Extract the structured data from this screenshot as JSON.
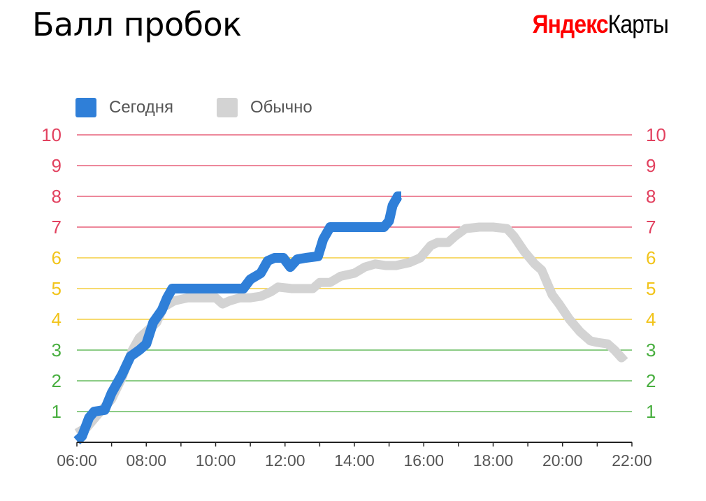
{
  "header": {
    "title": "Балл пробок",
    "brand_part1": "Яндекс",
    "brand_part2": "Карты"
  },
  "colors": {
    "today": "#2f7fd8",
    "usual": "#d3d3d3",
    "red": "#e2415f",
    "yellow": "#f2c41a",
    "green": "#47ae3e",
    "tick_text": "#555555"
  },
  "chart_data": {
    "type": "line",
    "x_unit": "hours",
    "xlim": [
      6,
      22
    ],
    "ylim": [
      0,
      10
    ],
    "x_ticks": [
      "06:00",
      "08:00",
      "10:00",
      "12:00",
      "14:00",
      "16:00",
      "18:00",
      "20:00",
      "22:00"
    ],
    "y_ticks": [
      {
        "label": "1",
        "value": 1,
        "level": "green"
      },
      {
        "label": "2",
        "value": 2,
        "level": "green"
      },
      {
        "label": "3",
        "value": 3,
        "level": "green"
      },
      {
        "label": "4",
        "value": 4,
        "level": "yellow"
      },
      {
        "label": "5",
        "value": 5,
        "level": "yellow"
      },
      {
        "label": "6",
        "value": 6,
        "level": "yellow"
      },
      {
        "label": "7",
        "value": 7,
        "level": "red"
      },
      {
        "label": "8",
        "value": 8,
        "level": "red"
      },
      {
        "label": "9",
        "value": 9,
        "level": "red"
      },
      {
        "label": "10",
        "value": 10,
        "level": "red"
      }
    ],
    "series": [
      {
        "name": "Обычно",
        "color": "#d3d3d3",
        "points": [
          [
            6,
            0.3
          ],
          [
            6.3,
            0.5
          ],
          [
            6.6,
            0.9
          ],
          [
            7,
            1.4
          ],
          [
            7.3,
            2.1
          ],
          [
            7.6,
            3.0
          ],
          [
            7.8,
            3.4
          ],
          [
            8.0,
            3.6
          ],
          [
            8.3,
            3.9
          ],
          [
            8.5,
            4.4
          ],
          [
            8.8,
            4.6
          ],
          [
            9.2,
            4.7
          ],
          [
            9.6,
            4.7
          ],
          [
            10.0,
            4.7
          ],
          [
            10.2,
            4.5
          ],
          [
            10.4,
            4.6
          ],
          [
            10.7,
            4.7
          ],
          [
            11.0,
            4.7
          ],
          [
            11.3,
            4.75
          ],
          [
            11.6,
            4.9
          ],
          [
            11.8,
            5.05
          ],
          [
            12.2,
            5.0
          ],
          [
            12.5,
            5.0
          ],
          [
            12.8,
            5.0
          ],
          [
            13.0,
            5.2
          ],
          [
            13.3,
            5.2
          ],
          [
            13.6,
            5.4
          ],
          [
            14.0,
            5.5
          ],
          [
            14.3,
            5.7
          ],
          [
            14.6,
            5.8
          ],
          [
            14.9,
            5.75
          ],
          [
            15.2,
            5.75
          ],
          [
            15.6,
            5.85
          ],
          [
            15.9,
            6.0
          ],
          [
            16.2,
            6.4
          ],
          [
            16.4,
            6.5
          ],
          [
            16.7,
            6.5
          ],
          [
            16.9,
            6.7
          ],
          [
            17.2,
            6.95
          ],
          [
            17.6,
            7.0
          ],
          [
            18.0,
            7.0
          ],
          [
            18.4,
            6.95
          ],
          [
            18.6,
            6.7
          ],
          [
            18.9,
            6.2
          ],
          [
            19.2,
            5.8
          ],
          [
            19.4,
            5.6
          ],
          [
            19.7,
            4.8
          ],
          [
            19.9,
            4.5
          ],
          [
            20.2,
            4.0
          ],
          [
            20.5,
            3.6
          ],
          [
            20.8,
            3.3
          ],
          [
            21.0,
            3.25
          ],
          [
            21.3,
            3.2
          ],
          [
            21.5,
            3.0
          ],
          [
            21.7,
            2.75
          ],
          [
            21.8,
            2.85
          ]
        ]
      },
      {
        "name": "Сегодня",
        "color": "#2f7fd8",
        "points": [
          [
            6.0,
            0.05
          ],
          [
            6.15,
            0.2
          ],
          [
            6.35,
            0.8
          ],
          [
            6.5,
            1.0
          ],
          [
            6.8,
            1.05
          ],
          [
            7.0,
            1.6
          ],
          [
            7.3,
            2.2
          ],
          [
            7.55,
            2.8
          ],
          [
            7.8,
            3.0
          ],
          [
            8.0,
            3.2
          ],
          [
            8.2,
            3.9
          ],
          [
            8.45,
            4.3
          ],
          [
            8.6,
            4.7
          ],
          [
            8.75,
            5.0
          ],
          [
            9.0,
            5.0
          ],
          [
            9.5,
            5.0
          ],
          [
            10.0,
            5.0
          ],
          [
            10.5,
            5.0
          ],
          [
            10.8,
            5.0
          ],
          [
            11.0,
            5.3
          ],
          [
            11.3,
            5.5
          ],
          [
            11.5,
            5.9
          ],
          [
            11.7,
            6.0
          ],
          [
            11.95,
            6.0
          ],
          [
            12.15,
            5.7
          ],
          [
            12.35,
            5.95
          ],
          [
            12.6,
            6.0
          ],
          [
            12.95,
            6.05
          ],
          [
            13.1,
            6.6
          ],
          [
            13.3,
            7.0
          ],
          [
            13.5,
            7.0
          ],
          [
            14.0,
            7.0
          ],
          [
            14.5,
            7.0
          ],
          [
            14.85,
            7.0
          ],
          [
            15.0,
            7.2
          ],
          [
            15.1,
            7.7
          ],
          [
            15.25,
            8.0
          ],
          [
            15.35,
            8.0
          ]
        ]
      }
    ]
  }
}
